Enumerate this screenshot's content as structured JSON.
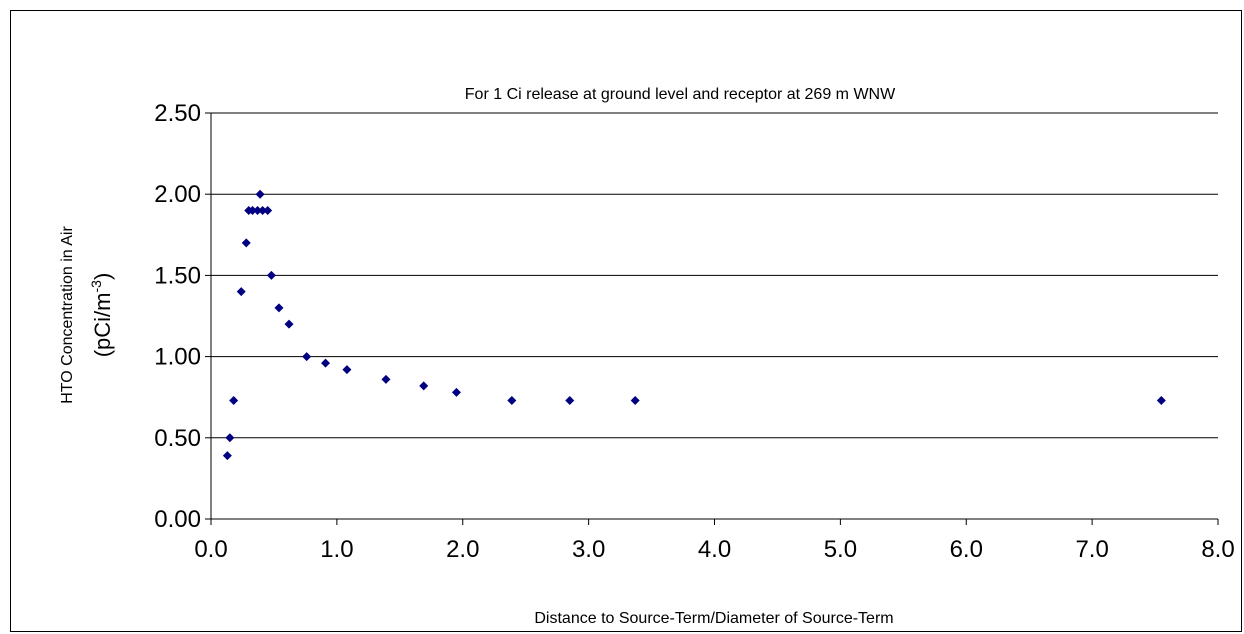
{
  "chart_data": {
    "type": "scatter",
    "title": "For 1 Ci release at ground level and receptor at 269 m WNW",
    "xlabel": "Distance to Source-Term/Diameter of Source-Term",
    "ylabel_line1": "HTO Concentration in Air",
    "ylabel_line2_prefix": "(pCi/m",
    "ylabel_line2_sup": "-3",
    "ylabel_line2_suffix": ")",
    "xlim": [
      0,
      8
    ],
    "ylim": [
      0,
      2.5
    ],
    "x_ticks": [
      "0.0",
      "1.0",
      "2.0",
      "3.0",
      "4.0",
      "5.0",
      "6.0",
      "7.0",
      "8.0"
    ],
    "x_tick_values": [
      0,
      1,
      2,
      3,
      4,
      5,
      6,
      7,
      8
    ],
    "y_ticks": [
      "0.00",
      "0.50",
      "1.00",
      "1.50",
      "2.00",
      "2.50"
    ],
    "y_tick_values": [
      0,
      0.5,
      1.0,
      1.5,
      2.0,
      2.5
    ],
    "grid": "horizontal",
    "marker_color": "#000080",
    "points": [
      {
        "x": 0.13,
        "y": 0.39
      },
      {
        "x": 0.15,
        "y": 0.5
      },
      {
        "x": 0.18,
        "y": 0.73
      },
      {
        "x": 0.24,
        "y": 1.4
      },
      {
        "x": 0.28,
        "y": 1.7
      },
      {
        "x": 0.3,
        "y": 1.9
      },
      {
        "x": 0.33,
        "y": 1.9
      },
      {
        "x": 0.37,
        "y": 1.9
      },
      {
        "x": 0.39,
        "y": 2.0
      },
      {
        "x": 0.41,
        "y": 1.9
      },
      {
        "x": 0.45,
        "y": 1.9
      },
      {
        "x": 0.48,
        "y": 1.5
      },
      {
        "x": 0.54,
        "y": 1.3
      },
      {
        "x": 0.62,
        "y": 1.2
      },
      {
        "x": 0.76,
        "y": 1.0
      },
      {
        "x": 0.91,
        "y": 0.96
      },
      {
        "x": 1.08,
        "y": 0.92
      },
      {
        "x": 1.39,
        "y": 0.86
      },
      {
        "x": 1.69,
        "y": 0.82
      },
      {
        "x": 1.95,
        "y": 0.78
      },
      {
        "x": 2.39,
        "y": 0.73
      },
      {
        "x": 2.85,
        "y": 0.73
      },
      {
        "x": 3.37,
        "y": 0.73
      },
      {
        "x": 7.55,
        "y": 0.73
      }
    ]
  }
}
